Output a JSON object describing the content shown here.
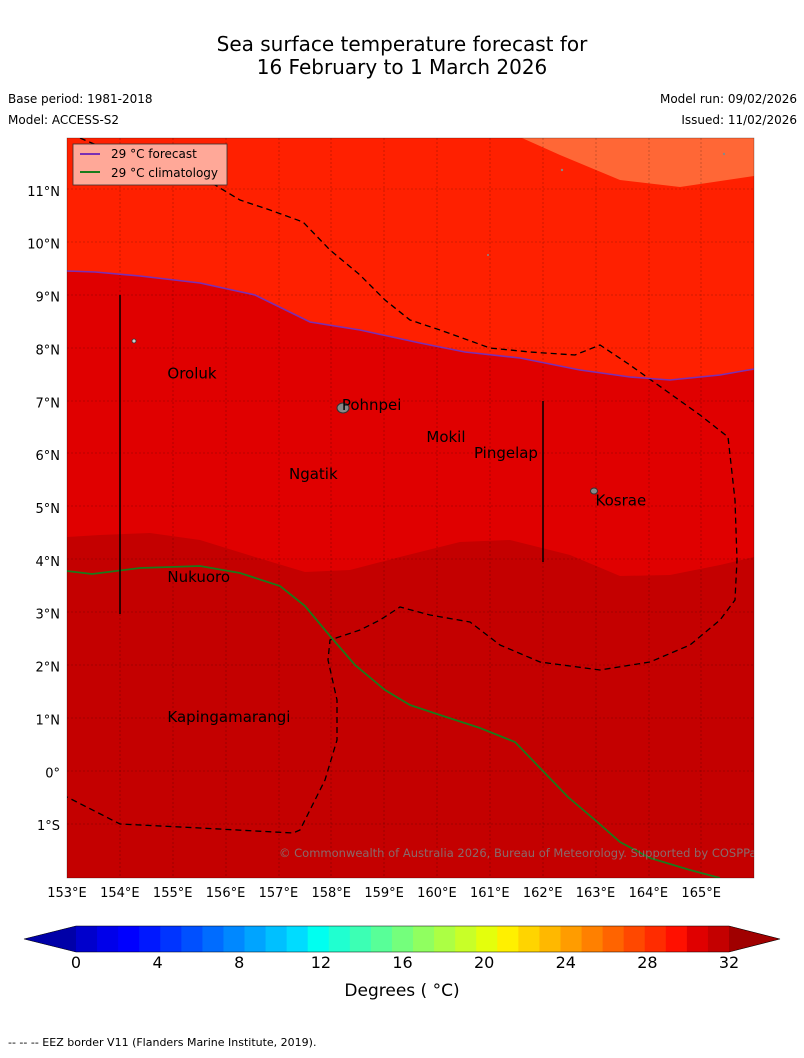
{
  "title_line1": "Sea surface temperature forecast for",
  "title_line2": "16 February to 1 March 2026",
  "base_period": "Base period: 1981-2018",
  "model": "Model: ACCESS-S2",
  "model_run": "Model run: 09/02/2026",
  "issued": "Issued: 11/02/2026",
  "legend": {
    "forecast": "29 °C  forecast",
    "climatology": "29 °C  climatology",
    "forecast_color": "#7b2fb4",
    "climatology_color": "#1a7a1a"
  },
  "map": {
    "lon_range": [
      153,
      166
    ],
    "lat_range": [
      -2,
      12
    ],
    "lon_ticks": [
      "153°E",
      "154°E",
      "155°E",
      "156°E",
      "157°E",
      "158°E",
      "159°E",
      "160°E",
      "161°E",
      "162°E",
      "163°E",
      "164°E",
      "165°E"
    ],
    "lat_ticks": [
      "1°S",
      "0°",
      "1°N",
      "2°N",
      "3°N",
      "4°N",
      "5°N",
      "6°N",
      "7°N",
      "8°N",
      "9°N",
      "10°N",
      "11°N"
    ],
    "places": [
      {
        "name": "Oroluk",
        "lon": 154.9,
        "lat": 7.45
      },
      {
        "name": "Pohnpei",
        "lon": 158.2,
        "lat": 6.85
      },
      {
        "name": "Mokil",
        "lon": 159.8,
        "lat": 6.25
      },
      {
        "name": "Pingelap",
        "lon": 160.7,
        "lat": 5.95
      },
      {
        "name": "Ngatik",
        "lon": 157.2,
        "lat": 5.55
      },
      {
        "name": "Kosrae",
        "lon": 163.0,
        "lat": 5.05
      },
      {
        "name": "Nukuoro",
        "lon": 154.9,
        "lat": 3.6
      },
      {
        "name": "Kapingamarangi",
        "lon": 154.9,
        "lat": 0.95
      }
    ],
    "zones": [
      {
        "label": "30-31 °C",
        "color": "#ff2000"
      },
      {
        "label": "29-30 °C",
        "color": "#e00000"
      },
      {
        "label": "28-29 °C",
        "color": "#c40000"
      }
    ],
    "credit": "© Commonwealth of Australia 2026, Bureau of Meteorology. Supported by COSPPac"
  },
  "colorbar": {
    "ticks": [
      "0",
      "4",
      "8",
      "12",
      "16",
      "20",
      "24",
      "28",
      "32"
    ],
    "units": "Degrees ( °C)",
    "colors": [
      "#0000a8",
      "#0000cc",
      "#0000ea",
      "#0000ff",
      "#0018ff",
      "#0034ff",
      "#0050ff",
      "#006cff",
      "#0088ff",
      "#00a4ff",
      "#00c0ff",
      "#00dcff",
      "#00fff0",
      "#20ffd0",
      "#3cffb4",
      "#58ff98",
      "#74ff7c",
      "#90ff60",
      "#acff44",
      "#c8ff28",
      "#e4ff0c",
      "#fff000",
      "#ffd400",
      "#ffb800",
      "#ff9c00",
      "#ff8000",
      "#ff6400",
      "#ff4800",
      "#ff2c00",
      "#ff1000",
      "#e00000",
      "#c40000",
      "#a00000"
    ]
  },
  "footer": "--  --  -- EEZ border V11 (Flanders Marine Institute, 2019)."
}
